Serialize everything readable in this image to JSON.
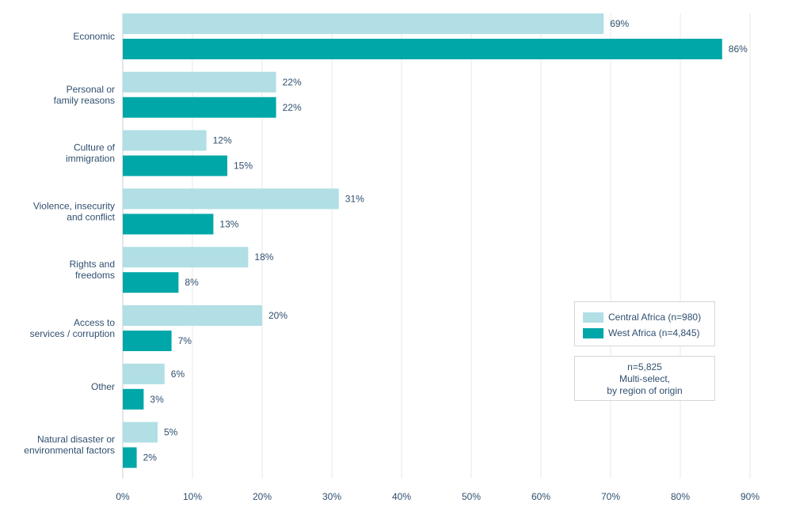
{
  "chart_data": {
    "type": "bar",
    "orientation": "horizontal",
    "categories": [
      "Economic",
      "Personal or family reasons",
      "Culture of immigration",
      "Violence, insecurity and conflict",
      "Rights and freedoms",
      "Access to services / corruption",
      "Other",
      "Natural disaster or environmental factors"
    ],
    "category_lines": [
      [
        "Economic"
      ],
      [
        "Personal or",
        "family reasons"
      ],
      [
        "Culture of",
        "immigration"
      ],
      [
        "Violence, insecurity",
        "and conflict"
      ],
      [
        "Rights and",
        "freedoms"
      ],
      [
        "Access to",
        "services / corruption"
      ],
      [
        "Other"
      ],
      [
        "Natural disaster or",
        "environmental factors"
      ]
    ],
    "series": [
      {
        "name": "Central Africa (n=980)",
        "color": "#b1dfe5",
        "values": [
          69,
          22,
          12,
          31,
          18,
          20,
          6,
          5
        ]
      },
      {
        "name": "West Africa (n=4,845)",
        "color": "#00a7a8",
        "values": [
          86,
          22,
          15,
          13,
          8,
          7,
          3,
          2
        ]
      }
    ],
    "xlim": [
      0,
      90
    ],
    "x_ticks": [
      0,
      10,
      20,
      30,
      40,
      50,
      60,
      70,
      80,
      90
    ],
    "x_tick_labels": [
      "0%",
      "10%",
      "20%",
      "30%",
      "40%",
      "50%",
      "60%",
      "70%",
      "80%",
      "90%"
    ],
    "value_suffix": "%",
    "grid": "vertical",
    "legend_position": "right"
  },
  "note_lines": [
    "n=5,825",
    "Multi-select,",
    "by region of origin"
  ],
  "colors": {
    "text": "#2f4f6f",
    "grid": "#e6e9eb"
  }
}
